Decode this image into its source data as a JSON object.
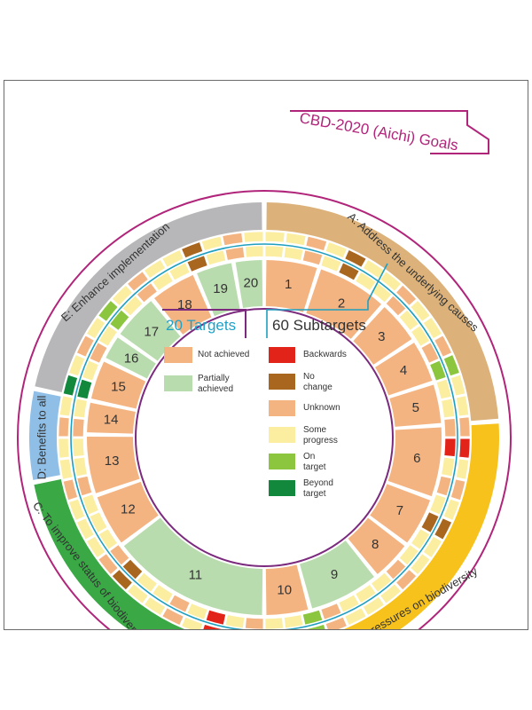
{
  "title": "CBD-2020 (Aichi) Goals",
  "goals": [
    {
      "id": "A",
      "label": "A: Address the underlying causes",
      "color": "#dcb27a"
    },
    {
      "id": "B",
      "label": "B: Reduce the direct pressures on biodiversity",
      "color": "#f7c21b"
    },
    {
      "id": "C",
      "label": "C: To improve status of biodiversity",
      "color": "#3aa845"
    },
    {
      "id": "D",
      "label": "D: Benefits to all",
      "color": "#8fbfe6"
    },
    {
      "id": "E",
      "label": "E: Enhance implementation",
      "color": "#b7b7b9"
    }
  ],
  "targets_heading": "20 Targets",
  "subtargets_heading": "60 Subtargets",
  "target_legend": [
    {
      "label": "Not achieved",
      "color": "#f4b482"
    },
    {
      "label": "Partially achieved",
      "color": "#b9dcae"
    }
  ],
  "subtarget_legend": [
    {
      "label": "Backwards",
      "color": "#e2231a"
    },
    {
      "label": "No change",
      "color": "#a8661e"
    },
    {
      "label": "Unknown",
      "color": "#f4b482"
    },
    {
      "label": "Some progress",
      "color": "#fbeea0"
    },
    {
      "label": "On target",
      "color": "#8cc63e"
    },
    {
      "label": "Beyond target",
      "color": "#12883d"
    }
  ],
  "targets": [
    {
      "number": "1",
      "status": "Not achieved"
    },
    {
      "number": "2",
      "status": "Not achieved"
    },
    {
      "number": "3",
      "status": "Not achieved"
    },
    {
      "number": "4",
      "status": "Not achieved"
    },
    {
      "number": "5",
      "status": "Not achieved"
    },
    {
      "number": "6",
      "status": "Not achieved"
    },
    {
      "number": "7",
      "status": "Not achieved"
    },
    {
      "number": "8",
      "status": "Not achieved"
    },
    {
      "number": "9",
      "status": "Partially achieved"
    },
    {
      "number": "10",
      "status": "Not achieved"
    },
    {
      "number": "11",
      "status": "Partially achieved"
    },
    {
      "number": "12",
      "status": "Not achieved"
    },
    {
      "number": "13",
      "status": "Not achieved"
    },
    {
      "number": "14",
      "status": "Not achieved"
    },
    {
      "number": "15",
      "status": "Not achieved"
    },
    {
      "number": "16",
      "status": "Partially achieved"
    },
    {
      "number": "17",
      "status": "Partially achieved"
    },
    {
      "number": "18",
      "status": "Not achieved"
    },
    {
      "number": "19",
      "status": "Partially achieved"
    },
    {
      "number": "20",
      "status": "Partially achieved"
    }
  ]
}
